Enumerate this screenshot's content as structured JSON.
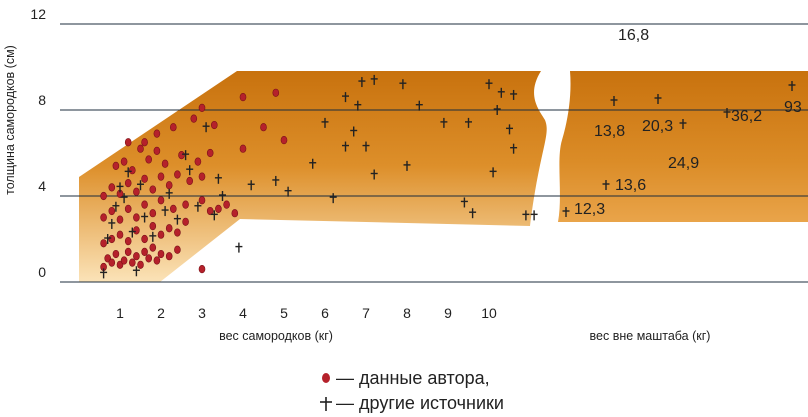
{
  "chart_data": {
    "type": "scatter",
    "title": "",
    "xlabel": "вес самородков (кг)",
    "xlabel_out": "вес вне маштаба (кг)",
    "ylabel": "толщина самородков (см)",
    "x_ticks": [
      "1",
      "2",
      "3",
      "4",
      "5",
      "6",
      "7",
      "8",
      "9",
      "10"
    ],
    "y_ticks": [
      "0",
      "4",
      "8",
      "12"
    ],
    "xlim": [
      0,
      11
    ],
    "ylim": [
      0,
      12
    ],
    "grid": "horizontal",
    "band_color_dark": "#c8720e",
    "band_color_light": "#fbe3b8",
    "series": [
      {
        "name": "данные автора,",
        "marker": "dot",
        "color": "#b5212b",
        "points": [
          [
            0.6,
            0.7
          ],
          [
            0.7,
            1.1
          ],
          [
            0.8,
            0.9
          ],
          [
            0.9,
            1.3
          ],
          [
            1.0,
            0.8
          ],
          [
            1.1,
            1.0
          ],
          [
            1.2,
            1.4
          ],
          [
            1.3,
            0.9
          ],
          [
            1.4,
            1.2
          ],
          [
            1.5,
            0.8
          ],
          [
            1.6,
            1.4
          ],
          [
            1.7,
            1.1
          ],
          [
            1.8,
            1.6
          ],
          [
            1.9,
            1.0
          ],
          [
            2.0,
            1.3
          ],
          [
            2.2,
            1.2
          ],
          [
            2.4,
            1.5
          ],
          [
            0.6,
            1.8
          ],
          [
            0.8,
            2.0
          ],
          [
            1.0,
            2.2
          ],
          [
            1.2,
            1.9
          ],
          [
            1.4,
            2.4
          ],
          [
            1.6,
            2.0
          ],
          [
            1.8,
            2.6
          ],
          [
            2.0,
            2.2
          ],
          [
            2.2,
            2.5
          ],
          [
            2.4,
            2.3
          ],
          [
            2.6,
            2.8
          ],
          [
            0.6,
            3.0
          ],
          [
            0.8,
            3.3
          ],
          [
            1.0,
            2.9
          ],
          [
            1.2,
            3.4
          ],
          [
            1.4,
            3.0
          ],
          [
            1.6,
            3.6
          ],
          [
            1.8,
            3.2
          ],
          [
            2.0,
            3.8
          ],
          [
            2.3,
            3.4
          ],
          [
            2.6,
            3.6
          ],
          [
            3.0,
            3.8
          ],
          [
            3.2,
            3.3
          ],
          [
            3.4,
            3.4
          ],
          [
            3.6,
            3.6
          ],
          [
            3.8,
            3.2
          ],
          [
            0.6,
            4.0
          ],
          [
            0.8,
            4.4
          ],
          [
            1.0,
            4.1
          ],
          [
            1.2,
            4.6
          ],
          [
            1.4,
            4.2
          ],
          [
            1.6,
            4.8
          ],
          [
            1.8,
            4.3
          ],
          [
            2.0,
            4.9
          ],
          [
            2.2,
            4.5
          ],
          [
            2.4,
            5.0
          ],
          [
            2.7,
            4.7
          ],
          [
            3.0,
            4.9
          ],
          [
            0.9,
            5.4
          ],
          [
            1.1,
            5.6
          ],
          [
            1.3,
            5.2
          ],
          [
            1.5,
            6.2
          ],
          [
            1.7,
            5.7
          ],
          [
            1.9,
            6.1
          ],
          [
            2.1,
            5.5
          ],
          [
            2.5,
            5.9
          ],
          [
            2.9,
            5.6
          ],
          [
            3.2,
            6.0
          ],
          [
            1.2,
            6.5
          ],
          [
            1.6,
            6.5
          ],
          [
            1.9,
            6.9
          ],
          [
            2.3,
            7.2
          ],
          [
            2.8,
            7.6
          ],
          [
            3.0,
            8.1
          ],
          [
            3.3,
            7.3
          ],
          [
            4.0,
            8.6
          ],
          [
            4.5,
            7.2
          ],
          [
            4.0,
            6.2
          ],
          [
            4.8,
            8.8
          ],
          [
            5.0,
            6.6
          ],
          [
            3.0,
            0.6
          ]
        ]
      },
      {
        "name": "другие источники",
        "marker": "cross",
        "color": "#222222",
        "points": [
          [
            0.6,
            0.4
          ],
          [
            0.7,
            2.0
          ],
          [
            0.8,
            2.7
          ],
          [
            0.9,
            3.5
          ],
          [
            1.0,
            4.4
          ],
          [
            1.1,
            3.9
          ],
          [
            1.2,
            5.1
          ],
          [
            1.3,
            2.3
          ],
          [
            1.4,
            0.5
          ],
          [
            1.5,
            4.5
          ],
          [
            1.6,
            3.0
          ],
          [
            1.8,
            2.1
          ],
          [
            2.1,
            3.3
          ],
          [
            2.2,
            4.1
          ],
          [
            2.4,
            2.9
          ],
          [
            2.6,
            5.9
          ],
          [
            2.7,
            5.2
          ],
          [
            2.9,
            3.5
          ],
          [
            3.1,
            7.2
          ],
          [
            3.3,
            3.1
          ],
          [
            3.4,
            4.8
          ],
          [
            3.5,
            4.0
          ],
          [
            3.9,
            1.6
          ],
          [
            4.2,
            4.5
          ],
          [
            4.8,
            4.7
          ],
          [
            5.1,
            4.2
          ],
          [
            5.7,
            5.5
          ],
          [
            6.0,
            7.4
          ],
          [
            6.2,
            3.9
          ],
          [
            6.5,
            6.3
          ],
          [
            6.5,
            8.6
          ],
          [
            6.7,
            7.0
          ],
          [
            6.8,
            8.2
          ],
          [
            6.9,
            9.3
          ],
          [
            7.0,
            6.3
          ],
          [
            7.2,
            9.4
          ],
          [
            7.2,
            5.0
          ],
          [
            7.9,
            9.2
          ],
          [
            8.0,
            5.4
          ],
          [
            8.3,
            8.2
          ],
          [
            8.9,
            7.4
          ],
          [
            9.4,
            3.7
          ],
          [
            9.5,
            7.4
          ],
          [
            9.6,
            3.2
          ],
          [
            10.0,
            9.2
          ],
          [
            10.1,
            5.1
          ],
          [
            10.2,
            8.0
          ],
          [
            10.3,
            8.8
          ],
          [
            10.5,
            7.1
          ],
          [
            10.6,
            6.2
          ],
          [
            10.6,
            8.7
          ],
          [
            10.9,
            3.1
          ],
          [
            11.1,
            3.1
          ]
        ]
      }
    ],
    "out_of_scale": [
      {
        "label": "12,3",
        "value": 12.3
      },
      {
        "label": "13,6",
        "value": 13.6
      },
      {
        "label": "13,8",
        "value": 13.8
      },
      {
        "label": "16,8",
        "value": 16.8
      },
      {
        "label": "20,3",
        "value": 20.3
      },
      {
        "label": "24,9",
        "value": 24.9
      },
      {
        "label": "36,2",
        "value": 36.2
      },
      {
        "label": "93",
        "value": 93
      }
    ]
  },
  "legend": {
    "author_text": "— данные автора,",
    "other_text": "— другие источники"
  }
}
